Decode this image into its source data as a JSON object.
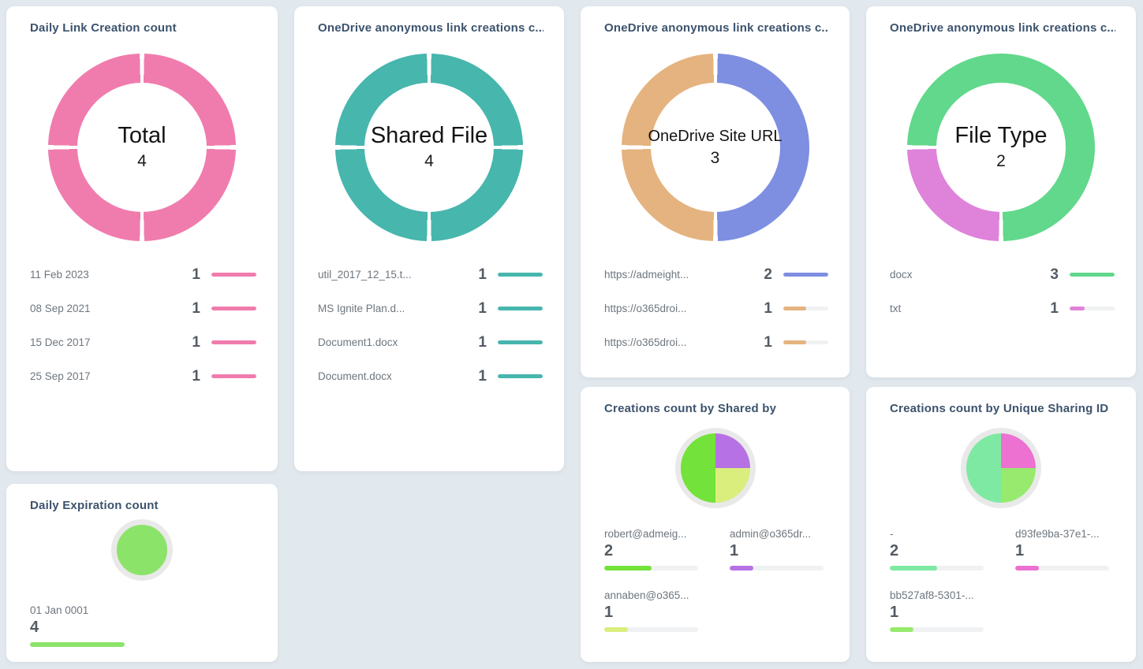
{
  "page": {
    "background_color": "#e2e9ee",
    "card_color": "#ffffff",
    "title_color": "#3c536d",
    "label_color": "#6d767e",
    "value_color": "#545b63",
    "bar_track_color": "#f0f1f2"
  },
  "chart_data": [
    {
      "type": "donut",
      "title": "Daily Link Creation count",
      "center_title": "Total",
      "center_value": "4",
      "total": 4,
      "categories": [
        "11 Feb 2023",
        "08 Sep 2021",
        "15 Dec 2017",
        "25 Sep 2017"
      ],
      "values": [
        1,
        1,
        1,
        1
      ],
      "colors": [
        "#f07cad",
        "#f07cad",
        "#f07cad",
        "#f07cad"
      ],
      "gap_deg": 1.4,
      "segments": [
        {
          "color": "#f07cad",
          "start": 0,
          "end": 90
        },
        {
          "color": "#f07cad",
          "start": 90,
          "end": 180
        },
        {
          "color": "#f07cad",
          "start": 180,
          "end": 270
        },
        {
          "color": "#f07cad",
          "start": 270,
          "end": 360
        }
      ],
      "legend": [
        {
          "label": "11 Feb 2023",
          "value": "1",
          "color": "#f07cad",
          "fill_pct": 100
        },
        {
          "label": "08 Sep 2021",
          "value": "1",
          "color": "#f07cad",
          "fill_pct": 100
        },
        {
          "label": "15 Dec 2017",
          "value": "1",
          "color": "#f07cad",
          "fill_pct": 100
        },
        {
          "label": "25 Sep 2017",
          "value": "1",
          "color": "#f07cad",
          "fill_pct": 100
        }
      ]
    },
    {
      "type": "donut",
      "title": "OneDrive anonymous link creations c...",
      "center_title": "Shared File",
      "center_value": "4",
      "total": 4,
      "categories": [
        "util_2017_12_15.t...",
        "MS Ignite Plan.d...",
        "Document1.docx",
        "Document.docx"
      ],
      "values": [
        1,
        1,
        1,
        1
      ],
      "colors": [
        "#47b6ad",
        "#47b6ad",
        "#47b6ad",
        "#47b6ad"
      ],
      "gap_deg": 1.4,
      "segments": [
        {
          "color": "#47b6ad",
          "start": 0,
          "end": 90
        },
        {
          "color": "#47b6ad",
          "start": 90,
          "end": 180
        },
        {
          "color": "#47b6ad",
          "start": 180,
          "end": 270
        },
        {
          "color": "#47b6ad",
          "start": 270,
          "end": 360
        }
      ],
      "legend": [
        {
          "label": "util_2017_12_15.t...",
          "value": "1",
          "color": "#47b6ad",
          "fill_pct": 100
        },
        {
          "label": "MS Ignite Plan.d...",
          "value": "1",
          "color": "#47b6ad",
          "fill_pct": 100
        },
        {
          "label": "Document1.docx",
          "value": "1",
          "color": "#47b6ad",
          "fill_pct": 100
        },
        {
          "label": "Document.docx",
          "value": "1",
          "color": "#47b6ad",
          "fill_pct": 100
        }
      ]
    },
    {
      "type": "donut",
      "title": "OneDrive anonymous link creations c...",
      "center_title": "OneDrive Site URL",
      "center_value": "3",
      "total": 3,
      "categories": [
        "https://admeight...",
        "https://o365droi...",
        "https://o365droi..."
      ],
      "values": [
        2,
        1,
        1
      ],
      "colors": [
        "#7e8fe1",
        "#e5b37f",
        "#e5b37f"
      ],
      "gap_deg": 1.4,
      "segments": [
        {
          "color": "#7e8fe1",
          "start": 0,
          "end": 180
        },
        {
          "color": "#e5b37f",
          "start": 180,
          "end": 270
        },
        {
          "color": "#e5b37f",
          "start": 270,
          "end": 360
        }
      ],
      "legend": [
        {
          "label": "https://admeight...",
          "value": "2",
          "color": "#7e8fe1",
          "fill_pct": 100
        },
        {
          "label": "https://o365droi...",
          "value": "1",
          "color": "#e5b37f",
          "fill_pct": 50
        },
        {
          "label": "https://o365droi...",
          "value": "1",
          "color": "#e5b37f",
          "fill_pct": 50
        }
      ]
    },
    {
      "type": "donut",
      "title": "OneDrive anonymous link creations c...",
      "center_title": "File Type",
      "center_value": "2",
      "total": 2,
      "categories": [
        "docx",
        "txt"
      ],
      "values": [
        3,
        1
      ],
      "colors": [
        "#61d88b",
        "#df82da"
      ],
      "gap_deg": 1.4,
      "segments": [
        {
          "color": "#61d88b",
          "start": 270,
          "end": 540
        },
        {
          "color": "#df82da",
          "start": 180,
          "end": 270
        }
      ],
      "legend": [
        {
          "label": "docx",
          "value": "3",
          "color": "#61d88b",
          "fill_pct": 100
        },
        {
          "label": "txt",
          "value": "1",
          "color": "#df82da",
          "fill_pct": 33
        }
      ]
    },
    {
      "type": "pie",
      "title": "Daily Expiration count",
      "categories": [
        "01 Jan 0001"
      ],
      "values": [
        4
      ],
      "colors": [
        "#8ce369"
      ],
      "gap_deg": 0,
      "segments": [
        {
          "color": "#8ce369",
          "start": 0,
          "end": 360
        }
      ],
      "legend": [
        {
          "label": "01 Jan 0001",
          "value": "4",
          "color": "#8ce369",
          "fill_pct": 100
        }
      ]
    },
    {
      "type": "pie",
      "title": "Creations count by Shared by",
      "categories": [
        "robert@admeig...",
        "admin@o365dr...",
        "annaben@o365..."
      ],
      "values": [
        2,
        1,
        1
      ],
      "colors": [
        "#73e23a",
        "#b672e4",
        "#d9ee7d"
      ],
      "gap_deg": 0,
      "segments": [
        {
          "color": "#b672e4",
          "start": 0,
          "end": 90
        },
        {
          "color": "#d9ee7d",
          "start": 90,
          "end": 180
        },
        {
          "color": "#73e23a",
          "start": 180,
          "end": 360
        }
      ],
      "legend": [
        {
          "label": "robert@admeig...",
          "value": "2",
          "color": "#73e23a",
          "fill_pct": 50
        },
        {
          "label": "admin@o365dr...",
          "value": "1",
          "color": "#b672e4",
          "fill_pct": 25
        },
        {
          "label": "annaben@o365...",
          "value": "1",
          "color": "#d9ee7d",
          "fill_pct": 25
        }
      ]
    },
    {
      "type": "pie",
      "title": "Creations count by Unique Sharing ID",
      "categories": [
        "-",
        "d93fe9ba-37e1-...",
        "bb527af8-5301-..."
      ],
      "values": [
        2,
        1,
        1
      ],
      "colors": [
        "#7ee9a3",
        "#ec71d1",
        "#97ea6e"
      ],
      "gap_deg": 0,
      "segments": [
        {
          "color": "#ec71d1",
          "start": 0,
          "end": 90
        },
        {
          "color": "#97ea6e",
          "start": 90,
          "end": 180
        },
        {
          "color": "#7ee9a3",
          "start": 180,
          "end": 360
        }
      ],
      "legend": [
        {
          "label": "-",
          "value": "2",
          "color": "#7ee9a3",
          "fill_pct": 50
        },
        {
          "label": "d93fe9ba-37e1-...",
          "value": "1",
          "color": "#ec71d1",
          "fill_pct": 25
        },
        {
          "label": "bb527af8-5301-...",
          "value": "1",
          "color": "#97ea6e",
          "fill_pct": 25
        }
      ]
    }
  ]
}
